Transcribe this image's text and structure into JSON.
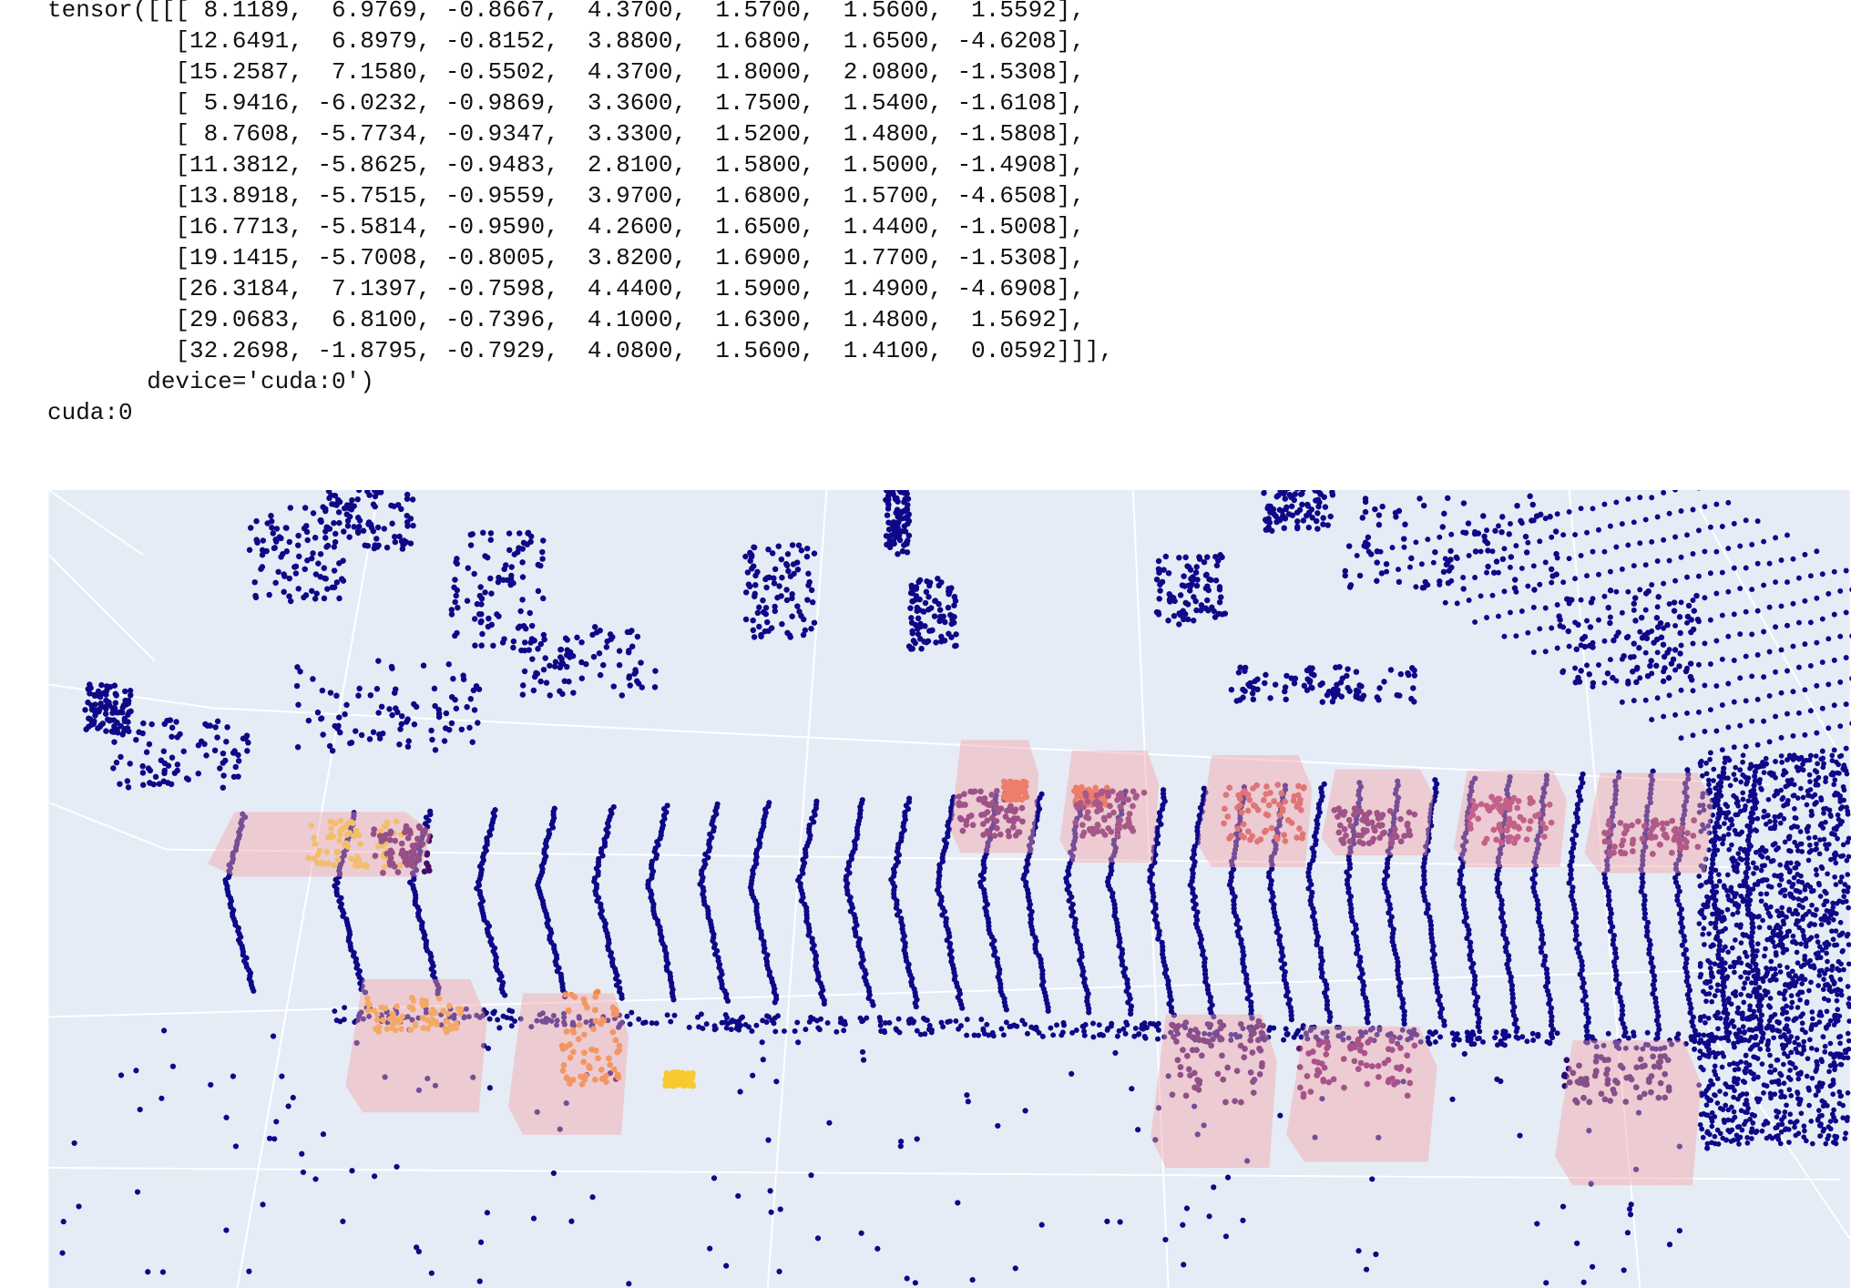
{
  "output": {
    "tensor_lines": [
      "tensor([[[ 8.1189,  6.9769, -0.8667,  4.3700,  1.5700,  1.5600,  1.5592],",
      "         [12.6491,  6.8979, -0.8152,  3.8800,  1.6800,  1.6500, -4.6208],",
      "         [15.2587,  7.1580, -0.5502,  4.3700,  1.8000,  2.0800, -1.5308],",
      "         [ 5.9416, -6.0232, -0.9869,  3.3600,  1.7500,  1.5400, -1.6108],",
      "         [ 8.7608, -5.7734, -0.9347,  3.3300,  1.5200,  1.4800, -1.5808],",
      "         [11.3812, -5.8625, -0.9483,  2.8100,  1.5800,  1.5000, -1.4908],",
      "         [13.8918, -5.7515, -0.9559,  3.9700,  1.6800,  1.5700, -4.6508],",
      "         [16.7713, -5.5814, -0.9590,  4.2600,  1.6500,  1.4400, -1.5008],",
      "         [19.1415, -5.7008, -0.8005,  3.8200,  1.6900,  1.7700, -1.5308],",
      "         [26.3184,  7.1397, -0.7598,  4.4400,  1.5900,  1.4900, -4.6908],",
      "         [29.0683,  6.8100, -0.7396,  4.1000,  1.6300,  1.4800,  1.5692],",
      "         [32.2698, -1.8795, -0.7929,  4.0800,  1.5600,  1.4100,  0.0592]]],"
    ],
    "device_line": "       device='cuda:0')",
    "device_print": "cuda:0"
  }
}
